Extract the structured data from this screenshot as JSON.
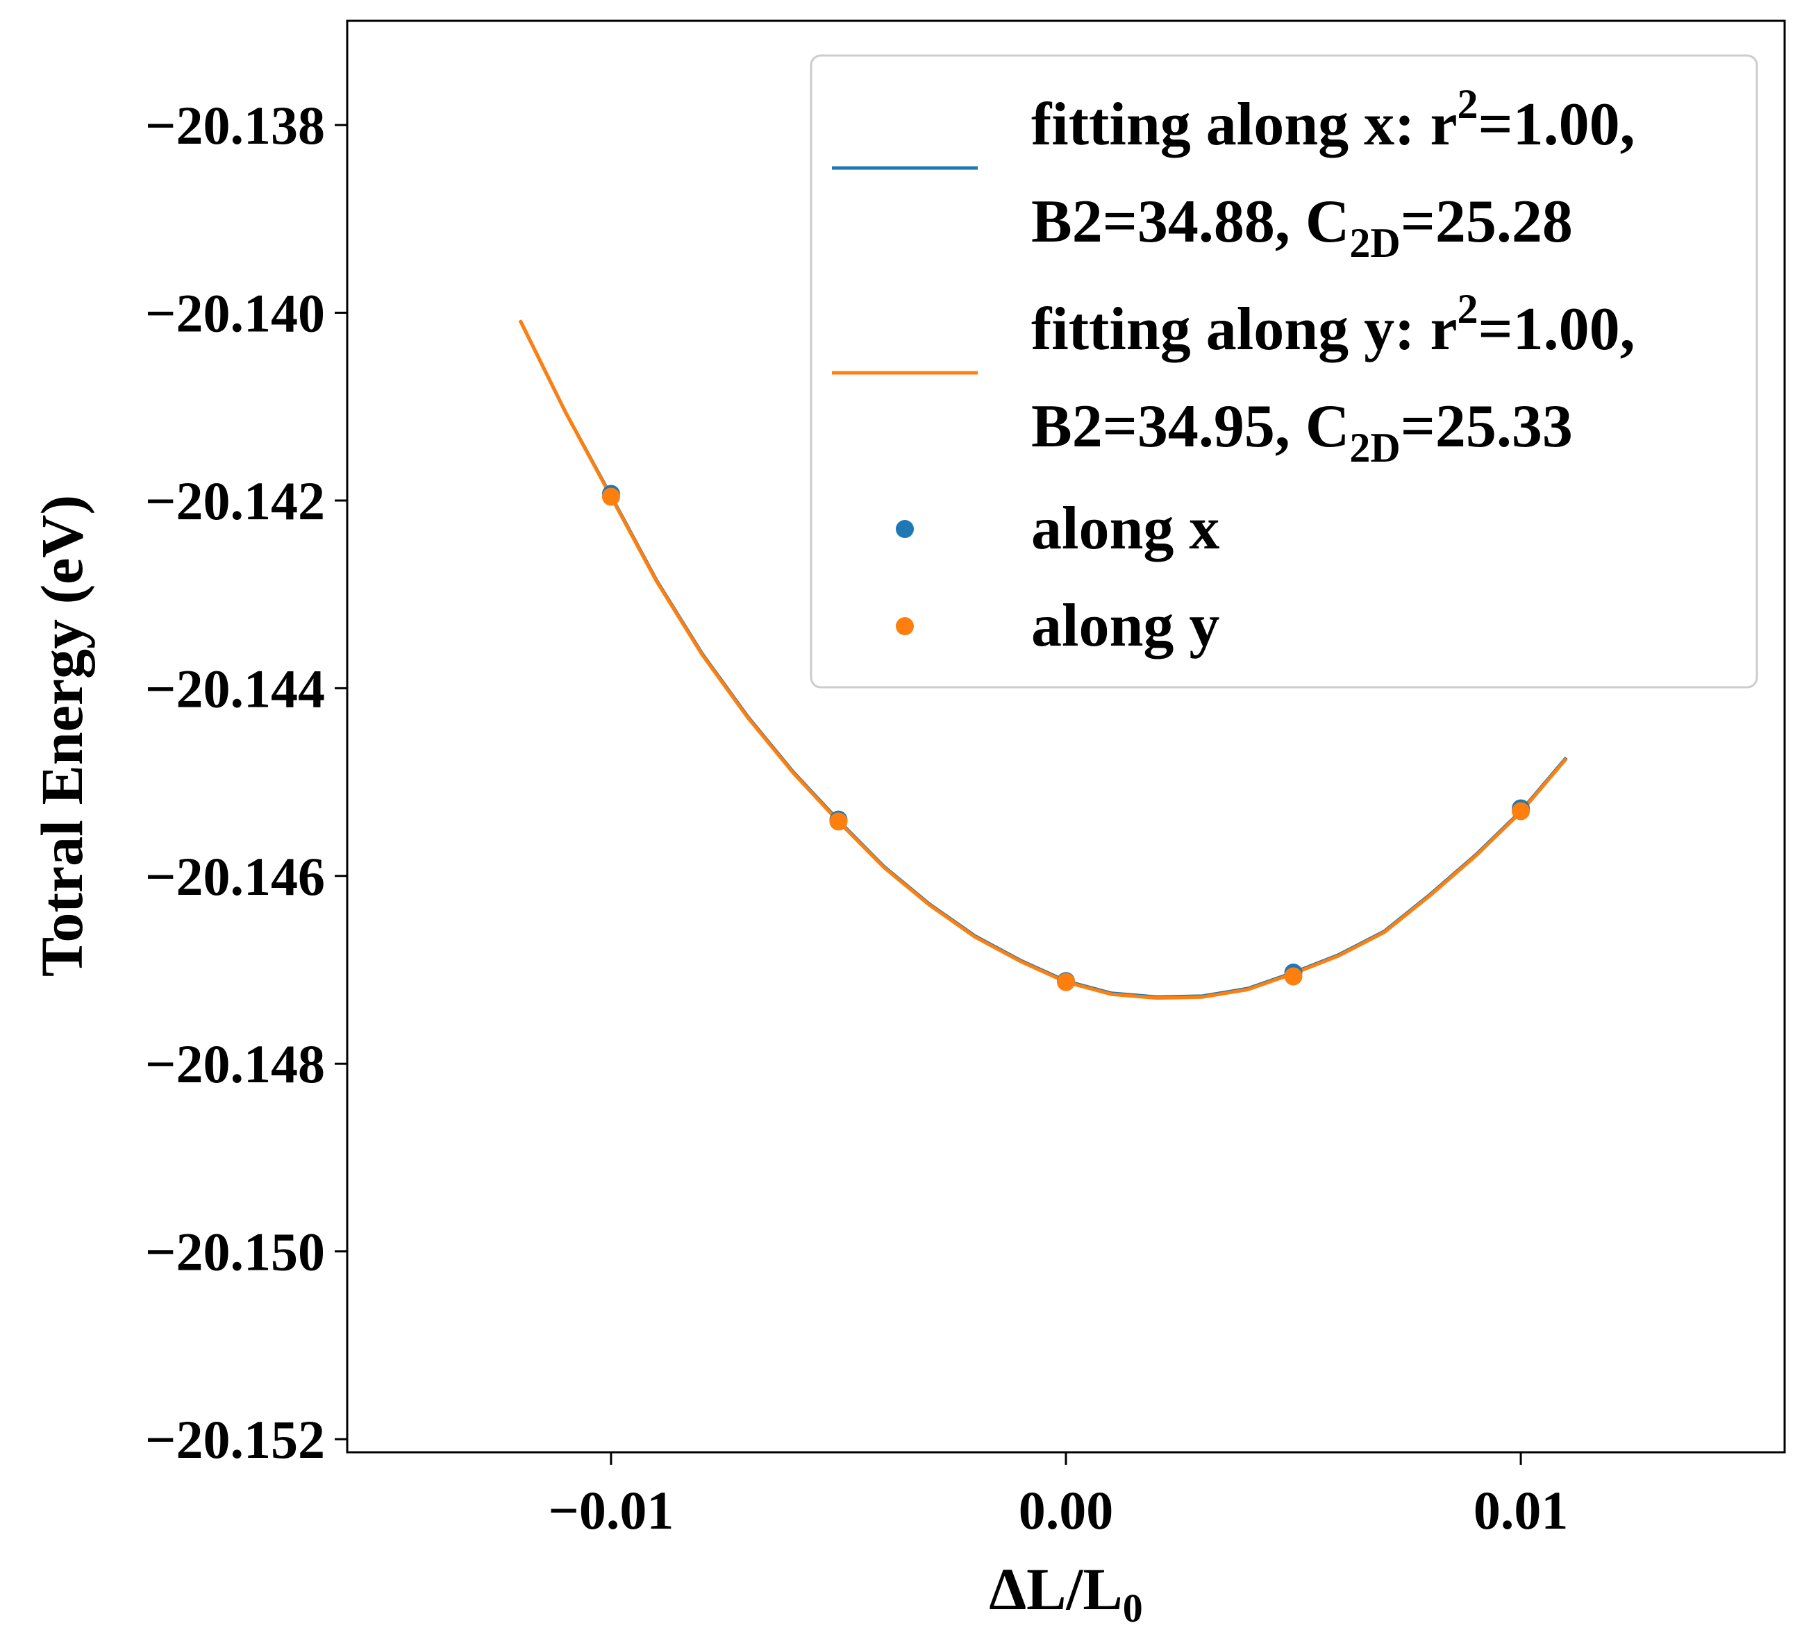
{
  "chart_data": {
    "type": "line",
    "xlabel": "ΔL/L",
    "xlabel_subscript": "0",
    "ylabel": "Totral Energy (eV)",
    "xlim": [
      -0.0158,
      0.0158
    ],
    "ylim": [
      -20.15214,
      -20.13689
    ],
    "x_ticks": [
      -0.01,
      0.0,
      0.01
    ],
    "x_tick_labels": [
      "−0.01",
      "0.00",
      "0.01"
    ],
    "y_ticks": [
      -20.138,
      -20.14,
      -20.142,
      -20.144,
      -20.146,
      -20.148,
      -20.15,
      -20.152
    ],
    "y_tick_labels": [
      "−20.138",
      "−20.140",
      "−20.142",
      "−20.144",
      "−20.146",
      "−20.148",
      "−20.150",
      "−20.152"
    ],
    "grid": false,
    "legend_position": "top-right",
    "series": [
      {
        "name": "fitting along x",
        "kind": "line",
        "color": "#1f77b4",
        "legend_lines": [
          [
            {
              "t": "fitting along x: r"
            },
            {
              "t": "2",
              "s": "sup"
            },
            {
              "t": "=1.00,"
            }
          ],
          [
            {
              "t": "B2=34.88, C"
            },
            {
              "t": "2D",
              "s": "sub"
            },
            {
              "t": "=25.28"
            }
          ]
        ],
        "x": [
          -0.012,
          -0.011,
          -0.01,
          -0.009,
          -0.008,
          -0.007,
          -0.006,
          -0.005,
          -0.004,
          -0.003,
          -0.002,
          -0.001,
          0.0,
          0.001,
          0.002,
          0.003,
          0.004,
          0.005,
          0.006,
          0.007,
          0.008,
          0.009,
          0.01,
          0.011
        ],
        "y": [
          -20.14008,
          -20.14106,
          -20.14195,
          -20.14285,
          -20.14363,
          -20.1443,
          -20.14489,
          -20.14541,
          -20.1459,
          -20.1463,
          -20.14664,
          -20.1469,
          -20.14712,
          -20.14725,
          -20.14729,
          -20.14728,
          -20.1472,
          -20.14703,
          -20.14684,
          -20.14659,
          -20.1462,
          -20.14578,
          -20.14531,
          -20.14474
        ]
      },
      {
        "name": "fitting along y",
        "kind": "line",
        "color": "#ff7f0e",
        "legend_lines": [
          [
            {
              "t": "fitting along y: r"
            },
            {
              "t": "2",
              "s": "sup"
            },
            {
              "t": "=1.00,"
            }
          ],
          [
            {
              "t": "B2=34.95, C"
            },
            {
              "t": "2D",
              "s": "sub"
            },
            {
              "t": "=25.33"
            }
          ]
        ],
        "x": [
          -0.012,
          -0.011,
          -0.01,
          -0.009,
          -0.008,
          -0.007,
          -0.006,
          -0.005,
          -0.004,
          -0.003,
          -0.002,
          -0.001,
          0.0,
          0.001,
          0.002,
          0.003,
          0.004,
          0.005,
          0.006,
          0.007,
          0.008,
          0.009,
          0.01,
          0.011
        ],
        "y": [
          -20.14008,
          -20.14106,
          -20.14196,
          -20.14286,
          -20.14364,
          -20.14431,
          -20.1449,
          -20.14542,
          -20.14591,
          -20.14631,
          -20.14665,
          -20.14691,
          -20.14713,
          -20.14726,
          -20.1473,
          -20.14729,
          -20.14721,
          -20.14704,
          -20.14685,
          -20.1466,
          -20.14621,
          -20.14579,
          -20.14532,
          -20.14475
        ]
      },
      {
        "name": "along x",
        "kind": "scatter",
        "color": "#1f77b4",
        "legend_lines": [
          [
            {
              "t": "along x"
            }
          ]
        ],
        "x": [
          -0.01,
          -0.005,
          0.0,
          0.005,
          0.01
        ],
        "y": [
          -20.14193,
          -20.1454,
          -20.14712,
          -20.14703,
          -20.14528
        ]
      },
      {
        "name": "along y",
        "kind": "scatter",
        "color": "#ff7f0e",
        "legend_lines": [
          [
            {
              "t": "along y"
            }
          ]
        ],
        "x": [
          -0.01,
          -0.005,
          0.0,
          0.005,
          0.01
        ],
        "y": [
          -20.14196,
          -20.14542,
          -20.14713,
          -20.14707,
          -20.14531
        ]
      }
    ]
  }
}
